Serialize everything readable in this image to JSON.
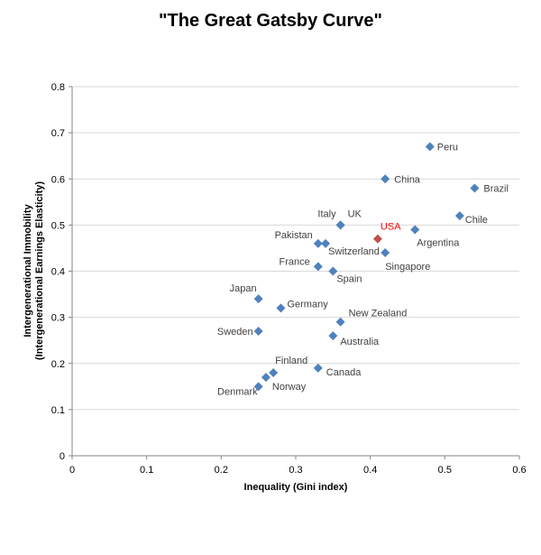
{
  "chart_data": {
    "type": "scatter",
    "title": "\"The Great Gatsby Curve\"",
    "xlabel": "Inequality (Gini index)",
    "ylabel": "Intergenerational Immobility",
    "ylabel_sub": "(Intergenerational Earnings Elasticity)",
    "xlim": [
      0,
      0.6
    ],
    "ylim": [
      0,
      0.8
    ],
    "x_ticks": [
      "0",
      "0.1",
      "0.2",
      "0.3",
      "0.4",
      "0.5",
      "0.6"
    ],
    "y_ticks": [
      "0",
      "0.1",
      "0.2",
      "0.3",
      "0.4",
      "0.5",
      "0.6",
      "0.7",
      "0.8"
    ],
    "grid": "horizontal",
    "colors": {
      "point": "#4F81BD",
      "highlight_point": "#C0504D",
      "highlight_label": "#FF0000",
      "grid": "#D9D9D9"
    },
    "points": [
      {
        "label": "Peru",
        "x": 0.48,
        "y": 0.67
      },
      {
        "label": "China",
        "x": 0.42,
        "y": 0.6
      },
      {
        "label": "Brazil",
        "x": 0.54,
        "y": 0.58
      },
      {
        "label": "Chile",
        "x": 0.52,
        "y": 0.52
      },
      {
        "label": "Argentina",
        "x": 0.46,
        "y": 0.49
      },
      {
        "label": "USA",
        "x": 0.41,
        "y": 0.47,
        "highlight": true
      },
      {
        "label": "Singapore",
        "x": 0.42,
        "y": 0.44
      },
      {
        "label": "Italy",
        "x": 0.36,
        "y": 0.5
      },
      {
        "label": "UK",
        "x": 0.36,
        "y": 0.5
      },
      {
        "label": "Pakistan",
        "x": 0.33,
        "y": 0.46
      },
      {
        "label": "Switzerland",
        "x": 0.34,
        "y": 0.46
      },
      {
        "label": "France",
        "x": 0.33,
        "y": 0.41
      },
      {
        "label": "Spain",
        "x": 0.35,
        "y": 0.4
      },
      {
        "label": "Japan",
        "x": 0.25,
        "y": 0.34
      },
      {
        "label": "Germany",
        "x": 0.28,
        "y": 0.32
      },
      {
        "label": "New Zealand",
        "x": 0.36,
        "y": 0.29
      },
      {
        "label": "Australia",
        "x": 0.35,
        "y": 0.26
      },
      {
        "label": "Sweden",
        "x": 0.25,
        "y": 0.27
      },
      {
        "label": "Finland",
        "x": 0.27,
        "y": 0.18
      },
      {
        "label": "Canada",
        "x": 0.33,
        "y": 0.19
      },
      {
        "label": "Norway",
        "x": 0.26,
        "y": 0.17
      },
      {
        "label": "Denmark",
        "x": 0.25,
        "y": 0.15
      }
    ]
  }
}
